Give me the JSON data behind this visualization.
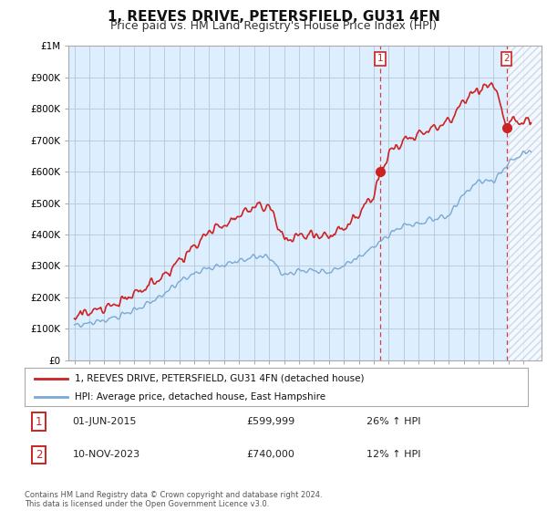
{
  "title": "1, REEVES DRIVE, PETERSFIELD, GU31 4FN",
  "subtitle": "Price paid vs. HM Land Registry's House Price Index (HPI)",
  "ylim": [
    0,
    1000000
  ],
  "yticks": [
    0,
    100000,
    200000,
    300000,
    400000,
    500000,
    600000,
    700000,
    800000,
    900000,
    1000000
  ],
  "ytick_labels": [
    "£0",
    "£100K",
    "£200K",
    "£300K",
    "£400K",
    "£500K",
    "£600K",
    "£700K",
    "£800K",
    "£900K",
    "£1M"
  ],
  "hpi_color": "#7aa8d2",
  "price_color": "#cc2222",
  "chart_bg": "#ddeeff",
  "hatch_color": "#bbccdd",
  "marker1_year": 2015.42,
  "marker1_price": 599999,
  "marker2_year": 2023.86,
  "marker2_price": 740000,
  "vline1_year": 2015.42,
  "vline2_year": 2023.86,
  "legend_line1": "1, REEVES DRIVE, PETERSFIELD, GU31 4FN (detached house)",
  "legend_line2": "HPI: Average price, detached house, East Hampshire",
  "annotation1_num": "1",
  "annotation1_date": "01-JUN-2015",
  "annotation1_price": "£599,999",
  "annotation1_info": "26% ↑ HPI",
  "annotation2_num": "2",
  "annotation2_date": "10-NOV-2023",
  "annotation2_price": "£740,000",
  "annotation2_info": "12% ↑ HPI",
  "footer": "Contains HM Land Registry data © Crown copyright and database right 2024.\nThis data is licensed under the Open Government Licence v3.0.",
  "bg_color": "#ffffff",
  "grid_color": "#bbccdd",
  "title_fontsize": 11,
  "subtitle_fontsize": 9,
  "tick_fontsize": 7.5
}
